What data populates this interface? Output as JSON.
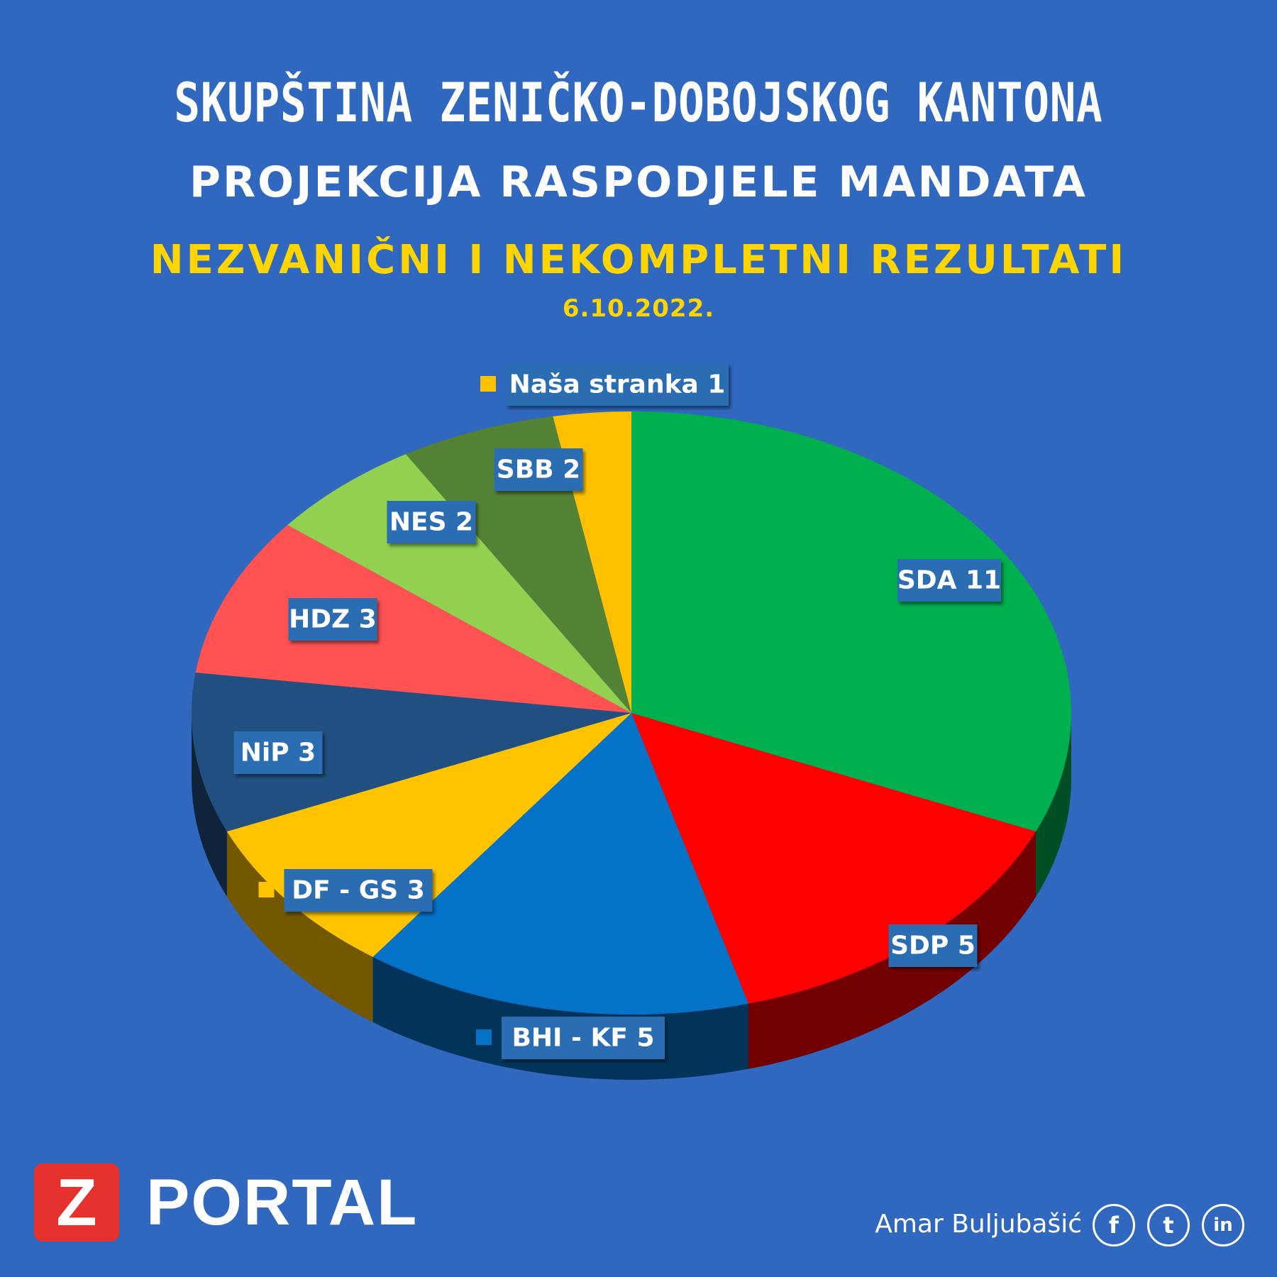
{
  "header": {
    "title": "SKUPŠTINA ZENIČKO-DOBOJSKOG KANTONA",
    "subtitle": "PROJEKCIJA RASPODJELE MANDATA",
    "notice": "NEZVANIČNI I NEKOMPLETNI REZULTATI",
    "date": "6.10.2022."
  },
  "chart_data": {
    "type": "pie",
    "title": "PROJEKCIJA RASPODJELE MANDATA",
    "slices": [
      {
        "name": "SDA",
        "value": 11,
        "label": "SDA 11",
        "color": "#00b04f"
      },
      {
        "name": "SDP",
        "value": 5,
        "label": "SDP 5",
        "color": "#ff0000"
      },
      {
        "name": "BHI - KF",
        "value": 5,
        "label": "BHI - KF 5",
        "color": "#0473c7"
      },
      {
        "name": "DF - GS",
        "value": 3,
        "label": "DF - GS 3",
        "color": "#ffc300"
      },
      {
        "name": "NiP",
        "value": 3,
        "label": "NiP 3",
        "color": "#215080"
      },
      {
        "name": "HDZ",
        "value": 3,
        "label": "HDZ 3",
        "color": "#ff5252"
      },
      {
        "name": "NES",
        "value": 2,
        "label": "NES 2",
        "color": "#92d050"
      },
      {
        "name": "SBB",
        "value": 2,
        "label": "SBB 2",
        "color": "#548235"
      },
      {
        "name": "Naša stranka",
        "value": 1,
        "label": "Naša stranka 1",
        "color": "#ffc000"
      }
    ]
  },
  "logo": {
    "letter": "Z",
    "text": "PORTAL"
  },
  "author": "Amar Buljubašić",
  "social": [
    {
      "icon": "facebook-icon",
      "glyph": "f"
    },
    {
      "icon": "twitter-icon",
      "glyph": "t"
    },
    {
      "icon": "linkedin-icon",
      "glyph": "in"
    }
  ]
}
